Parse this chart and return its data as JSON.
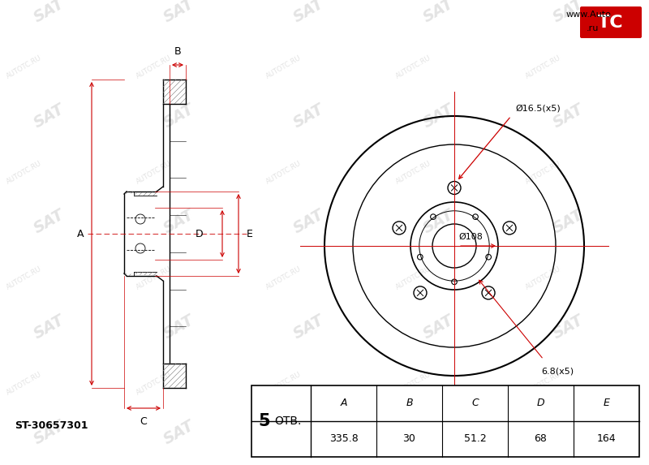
{
  "background_color": "#ffffff",
  "part_number": "ST-30657301",
  "otv_label": "ОТВ.",
  "dim_A": "335.8",
  "dim_B": "30",
  "dim_C": "51.2",
  "dim_D": "68",
  "dim_E": "164",
  "hole_label_outer": "Ø16.5(x5)",
  "hole_label_inner": "6.8(x5)",
  "center_label": "Ø108",
  "website_text": "www.Auto",
  "website_tc": "TC",
  "website_end": ".ru",
  "line_color": "#000000",
  "dim_color": "#cc0000",
  "lw_main": 1.0,
  "lw_thin": 0.6,
  "font_size_dim": 8,
  "font_size_table": 9
}
